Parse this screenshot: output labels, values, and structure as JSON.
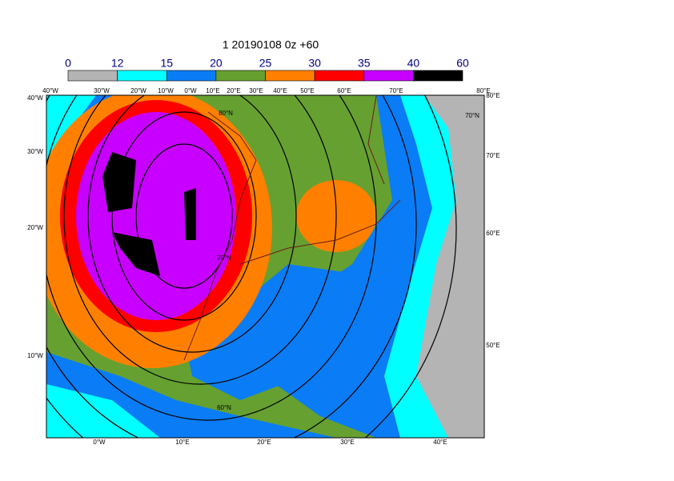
{
  "title": "1 20190108 0z +60",
  "colorbar": {
    "bounds": [
      0,
      12,
      15,
      20,
      25,
      30,
      35,
      40,
      60
    ],
    "colors": [
      "#b4b4b4",
      "#00ffff",
      "#0a7cf5",
      "#66a030",
      "#ff8000",
      "#ff0000",
      "#c800ff",
      "#000000"
    ]
  },
  "labels": {
    "top": [
      "40°W",
      "30°W",
      "20°W",
      "10°W",
      "0°W",
      "10°E",
      "20°E",
      "30°E",
      "40°E",
      "50°E",
      "60°E",
      "70°E",
      "80°E"
    ],
    "left": [
      "40°W",
      "30°W",
      "20°W",
      "10°W"
    ],
    "right": [
      "80°E",
      "70°E",
      "60°E",
      "50°E"
    ],
    "bottom": [
      "0°W",
      "10°E",
      "20°E",
      "30°E",
      "40°E"
    ],
    "inner": [
      "80°N",
      "70°N",
      "70°N",
      "60°N"
    ]
  }
}
